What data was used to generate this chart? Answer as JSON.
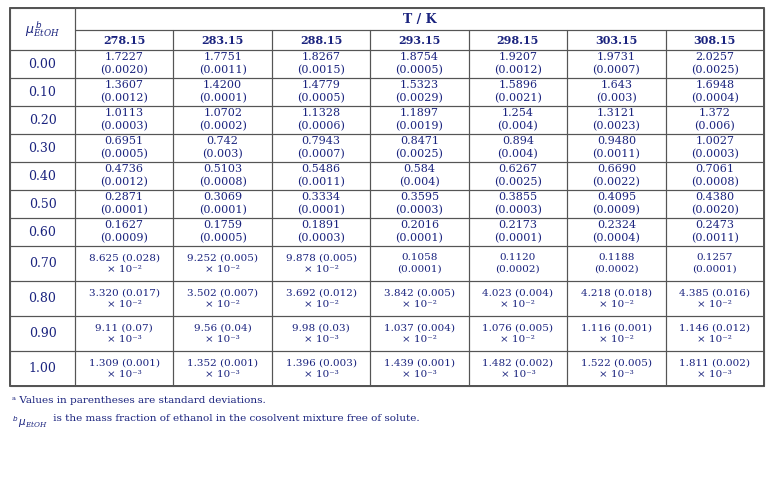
{
  "col_headers": [
    "278.15",
    "283.15",
    "288.15",
    "293.15",
    "298.15",
    "303.15",
    "308.15"
  ],
  "row_headers": [
    "0.00",
    "0.10",
    "0.20",
    "0.30",
    "0.40",
    "0.50",
    "0.60",
    "0.70",
    "0.80",
    "0.90",
    "1.00"
  ],
  "cells": [
    [
      "1.7227\n(0.0020)",
      "1.7751\n(0.0011)",
      "1.8267\n(0.0015)",
      "1.8754\n(0.0005)",
      "1.9207\n(0.0012)",
      "1.9731\n(0.0007)",
      "2.0257\n(0.0025)"
    ],
    [
      "1.3607\n(0.0012)",
      "1.4200\n(0.0001)",
      "1.4779\n(0.0005)",
      "1.5323\n(0.0029)",
      "1.5896\n(0.0021)",
      "1.643\n(0.003)",
      "1.6948\n(0.0004)"
    ],
    [
      "1.0113\n(0.0003)",
      "1.0702\n(0.0002)",
      "1.1328\n(0.0006)",
      "1.1897\n(0.0019)",
      "1.254\n(0.004)",
      "1.3121\n(0.0023)",
      "1.372\n(0.006)"
    ],
    [
      "0.6951\n(0.0005)",
      "0.742\n(0.003)",
      "0.7943\n(0.0007)",
      "0.8471\n(0.0025)",
      "0.894\n(0.004)",
      "0.9480\n(0.0011)",
      "1.0027\n(0.0003)"
    ],
    [
      "0.4736\n(0.0012)",
      "0.5103\n(0.0008)",
      "0.5486\n(0.0011)",
      "0.584\n(0.004)",
      "0.6267\n(0.0025)",
      "0.6690\n(0.0022)",
      "0.7061\n(0.0008)"
    ],
    [
      "0.2871\n(0.0001)",
      "0.3069\n(0.0001)",
      "0.3334\n(0.0001)",
      "0.3595\n(0.0003)",
      "0.3855\n(0.0003)",
      "0.4095\n(0.0009)",
      "0.4380\n(0.0020)"
    ],
    [
      "0.1627\n(0.0009)",
      "0.1759\n(0.0005)",
      "0.1891\n(0.0003)",
      "0.2016\n(0.0001)",
      "0.2173\n(0.0001)",
      "0.2324\n(0.0004)",
      "0.2473\n(0.0011)"
    ],
    [
      "8.625 (0.028)\n× 10⁻²",
      "9.252 (0.005)\n× 10⁻²",
      "9.878 (0.005)\n× 10⁻²",
      "0.1058\n(0.0001)",
      "0.1120\n(0.0002)",
      "0.1188\n(0.0002)",
      "0.1257\n(0.0001)"
    ],
    [
      "3.320 (0.017)\n× 10⁻²",
      "3.502 (0.007)\n× 10⁻²",
      "3.692 (0.012)\n× 10⁻²",
      "3.842 (0.005)\n× 10⁻²",
      "4.023 (0.004)\n× 10⁻²",
      "4.218 (0.018)\n× 10⁻²",
      "4.385 (0.016)\n× 10⁻²"
    ],
    [
      "9.11 (0.07)\n× 10⁻³",
      "9.56 (0.04)\n× 10⁻³",
      "9.98 (0.03)\n× 10⁻³",
      "1.037 (0.004)\n× 10⁻²",
      "1.076 (0.005)\n× 10⁻²",
      "1.116 (0.001)\n× 10⁻²",
      "1.146 (0.012)\n× 10⁻²"
    ],
    [
      "1.309 (0.001)\n× 10⁻³",
      "1.352 (0.001)\n× 10⁻³",
      "1.396 (0.003)\n× 10⁻³",
      "1.439 (0.001)\n× 10⁻³",
      "1.482 (0.002)\n× 10⁻³",
      "1.522 (0.005)\n× 10⁻³",
      "1.811 (0.002)\n× 10⁻³"
    ]
  ],
  "text_color": "#1a237e",
  "border_color": "#555555",
  "bg_color": "#ffffff",
  "footnote_color": "#1a237e",
  "footnote_a": "ᵃ Values in parentheses are standard deviations.",
  "footnote_b_suffix": " is the mass fraction of ethanol in the cosolvent mixture free of solute."
}
